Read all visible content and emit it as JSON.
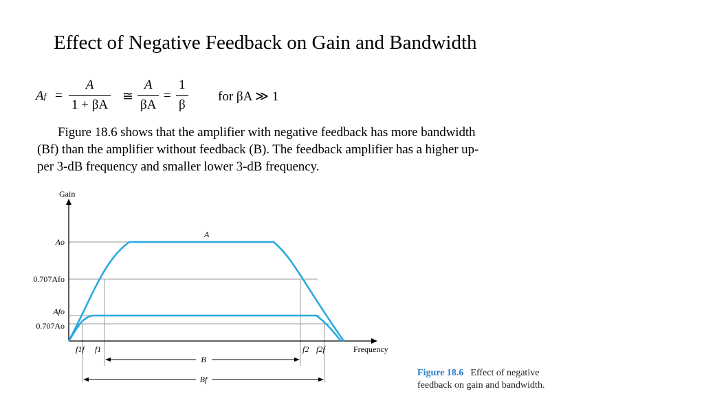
{
  "slide": {
    "title": "Effect of Negative Feedback on Gain and Bandwidth"
  },
  "equation": {
    "lhs": "A",
    "lhs_sub": "f",
    "eq1": "=",
    "frac1_num": "A",
    "frac1_den": "1 + βA",
    "approx": "≅",
    "frac2_num": "A",
    "frac2_den": "βA",
    "eq2": "=",
    "frac3_num": "1",
    "frac3_den": "β",
    "condition": "for βA ≫ 1"
  },
  "paragraph": {
    "line1": "Figure 18.6 shows that the amplifier with negative feedback has more bandwidth",
    "line2": "(Bf) than the amplifier without feedback (B). The feedback amplifier has a higher up-",
    "line3": "per 3-dB frequency and smaller lower 3-dB frequency."
  },
  "figure": {
    "y_axis_label": "Gain",
    "x_axis_label": "Frequency",
    "curve_label": "A",
    "level_labels": {
      "ao": "Ao",
      "point707_afo": "0.707Afo",
      "afo": "Afo",
      "point707_ao": "0.707Ao"
    },
    "freq_labels": {
      "f1f": "f1f",
      "f1": "f1",
      "f2": "f2",
      "f2f": "f2f"
    },
    "bandwidth_labels": {
      "b": "B",
      "bf": "Bf"
    },
    "colors": {
      "curve": "#29a9e1",
      "axis": "#000000",
      "guide": "#9a9a9a"
    }
  },
  "caption": {
    "label": "Figure 18.6",
    "text": "Effect of negative feedback on gain and bandwidth."
  }
}
